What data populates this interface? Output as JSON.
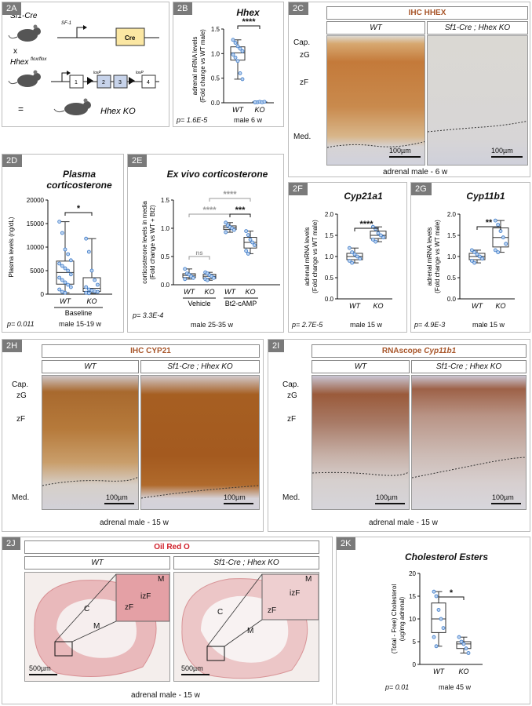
{
  "p2A": {
    "label": "2A",
    "sf1_cre": "Sf1-Cre",
    "x": "x",
    "sf1": "SF-1",
    "cre": "Cre",
    "hhex": "Hhex",
    "flox": "flox/flox",
    "loxp": "loxP",
    "exons": [
      "1",
      "2",
      "3",
      "4"
    ],
    "eq": "=",
    "ko": "Hhex KO"
  },
  "p2B": {
    "label": "2B",
    "title": "Hhex",
    "ylabel1": "adrenal mRNA levels",
    "ylabel2": "(Fold change vs WT male)",
    "sig": "****",
    "pval": "p= 1.6E-5",
    "note": "male 6 w",
    "xcats": [
      "WT",
      "KO"
    ],
    "yticks": [
      "0.0",
      "0.5",
      "1.0",
      "1.5"
    ]
  },
  "p2C": {
    "label": "2C",
    "title": "IHC HHEX",
    "wt": "WT",
    "ko": "Sf1-Cre ; Hhex KO",
    "cap": "Cap.",
    "zg": "zG",
    "zf": "zF",
    "med": "Med.",
    "scale": "100µm",
    "caption": "adrenal male - 6 w"
  },
  "p2D": {
    "label": "2D",
    "title1": "Plasma",
    "title2": "corticosterone",
    "ylabel": "Plasma levels (ng/dL)",
    "sig": "*",
    "pval": "p= 0.011",
    "note": "male 15-19 w",
    "xcats": [
      "WT",
      "KO"
    ],
    "group": "Baseline",
    "yticks": [
      "0",
      "5000",
      "10000",
      "15000",
      "20000"
    ]
  },
  "p2E": {
    "label": "2E",
    "title": "Ex vivo corticosterone",
    "ylabel1": "corticosterone levels in media",
    "ylabel2": "(Fold change vs WT + Bt2)",
    "pval": "p= 3.3E-4",
    "note": "male 25-35 w",
    "xcats": [
      "WT",
      "KO",
      "WT",
      "KO"
    ],
    "groups": [
      "Vehicle",
      "Bt2-cAMP"
    ],
    "sig_ns": "ns",
    "sig4": "****",
    "sig3": "***",
    "yticks": [
      "0.0",
      "0.5",
      "1.0",
      "1.5"
    ]
  },
  "p2F": {
    "label": "2F",
    "title": "Cyp21a1",
    "ylabel1": "adrenal mRNA levels",
    "ylabel2": "(Fold change vs WT male)",
    "sig": "****",
    "pval": "p= 2.7E-5",
    "note": "male 15 w",
    "xcats": [
      "WT",
      "KO"
    ],
    "yticks": [
      "0.0",
      "0.5",
      "1.0",
      "1.5",
      "2.0"
    ]
  },
  "p2G": {
    "label": "2G",
    "title": "Cyp11b1",
    "ylabel1": "adrenal mRNA levels",
    "ylabel2": "(Fold change vs WT male)",
    "sig": "**",
    "pval": "p= 4.9E-3",
    "note": "male 15 w",
    "xcats": [
      "WT",
      "KO"
    ],
    "yticks": [
      "0.0",
      "0.5",
      "1.0",
      "1.5",
      "2.0"
    ]
  },
  "p2H": {
    "label": "2H",
    "title": "IHC CYP21",
    "wt": "WT",
    "ko": "Sf1-Cre ; Hhex KO",
    "cap": "Cap.",
    "zg": "zG",
    "zf": "zF",
    "med": "Med.",
    "scale": "100µm",
    "caption": "adrenal male - 15 w"
  },
  "p2I": {
    "label": "2I",
    "title_a": "RNAscope ",
    "title_b": "Cyp11b1",
    "wt": "WT",
    "ko": "Sf1-Cre ; Hhex KO",
    "cap": "Cap.",
    "zg": "zG",
    "zf": "zF",
    "med": "Med.",
    "scale": "100µm",
    "caption": "adrenal male - 15 w"
  },
  "p2J": {
    "label": "2J",
    "title": "Oil Red O",
    "wt": "WT",
    "ko": "Sf1-Cre ; Hhex KO",
    "c": "C",
    "m": "M",
    "zf": "zF",
    "izf": "izF",
    "scale": "500µm",
    "caption": "adrenal male - 15 w"
  },
  "p2K": {
    "label": "2K",
    "title": "Cholesterol Esters",
    "ylabel1": "(Total - Free) Cholesterol",
    "ylabel2": "(ug/mg adrenal)",
    "sig": "*",
    "pval": "p= 0.01",
    "note": "male 45 w",
    "xcats": [
      "WT",
      "KO"
    ],
    "yticks": [
      "0",
      "5",
      "10",
      "15",
      "20"
    ]
  },
  "chart_data": [
    {
      "panel": "2B",
      "type": "scatter",
      "ylim": [
        0,
        1.5
      ],
      "series": [
        {
          "name": "WT",
          "values": [
            1.28,
            1.22,
            1.15,
            1.1,
            1.05,
            0.98,
            0.92,
            0.85,
            0.6,
            0.48
          ]
        },
        {
          "name": "KO",
          "values": [
            0.01,
            0.01,
            0.02,
            0.01,
            0.02,
            0.01
          ]
        }
      ]
    },
    {
      "panel": "2D",
      "type": "scatter",
      "ylim": [
        0,
        20000
      ],
      "series": [
        {
          "name": "WT",
          "values": [
            15400,
            13000,
            9500,
            8500,
            7200,
            6500,
            6000,
            5500,
            5000,
            4200,
            3500,
            3000,
            2500,
            2000,
            1500,
            1000,
            500,
            300
          ]
        },
        {
          "name": "KO",
          "values": [
            11800,
            9000,
            5000,
            3000,
            2000,
            1500,
            1000,
            800,
            600,
            500,
            300,
            200
          ]
        }
      ]
    },
    {
      "panel": "2E",
      "type": "scatter",
      "ylim": [
        0,
        1.5
      ],
      "series": [
        {
          "name": "Vehicle WT",
          "values": [
            0.28,
            0.2,
            0.18,
            0.15,
            0.12,
            0.1
          ]
        },
        {
          "name": "Vehicle KO",
          "values": [
            0.22,
            0.2,
            0.17,
            0.15,
            0.12,
            0.1,
            0.08
          ]
        },
        {
          "name": "Bt2-cAMP WT",
          "values": [
            1.1,
            1.05,
            1.02,
            1.0,
            0.97,
            0.93
          ]
        },
        {
          "name": "Bt2-cAMP KO",
          "values": [
            0.95,
            0.88,
            0.8,
            0.75,
            0.7,
            0.6,
            0.55
          ]
        }
      ]
    },
    {
      "panel": "2F",
      "type": "scatter",
      "ylim": [
        0,
        2.0
      ],
      "series": [
        {
          "name": "WT",
          "values": [
            1.2,
            1.1,
            1.05,
            1.0,
            0.95,
            0.9,
            0.85
          ]
        },
        {
          "name": "KO",
          "values": [
            1.7,
            1.65,
            1.55,
            1.5,
            1.45,
            1.4,
            1.35
          ]
        }
      ]
    },
    {
      "panel": "2G",
      "type": "scatter",
      "ylim": [
        0,
        2.0
      ],
      "series": [
        {
          "name": "WT",
          "values": [
            1.15,
            1.1,
            1.05,
            1.0,
            0.95,
            0.9,
            0.85
          ]
        },
        {
          "name": "KO",
          "values": [
            1.85,
            1.75,
            1.6,
            1.45,
            1.3,
            1.15,
            1.1
          ]
        }
      ]
    },
    {
      "panel": "2K",
      "type": "scatter",
      "ylim": [
        0,
        20
      ],
      "series": [
        {
          "name": "WT",
          "values": [
            16,
            15,
            12,
            10,
            8,
            6,
            4
          ]
        },
        {
          "name": "KO",
          "values": [
            6,
            5,
            4.5,
            3.5,
            2.5
          ]
        }
      ]
    }
  ]
}
